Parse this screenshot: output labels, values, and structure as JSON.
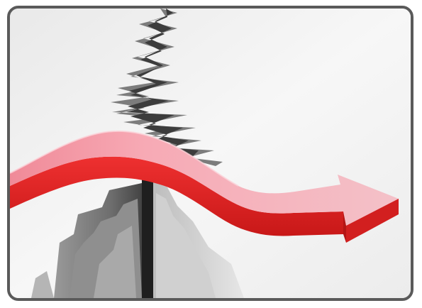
{
  "image": {
    "subject": "crack-bridged-by-arrow",
    "colors": {
      "background": "#f2f2f2",
      "border": "#5a5a5a",
      "arrow_top": "#f6a0ad",
      "arrow_front": "#e52a2a",
      "arrow_front_dark": "#c41a1a",
      "crack_dark": "#2b2b2b",
      "crack_mid": "#8a8a8a"
    }
  }
}
